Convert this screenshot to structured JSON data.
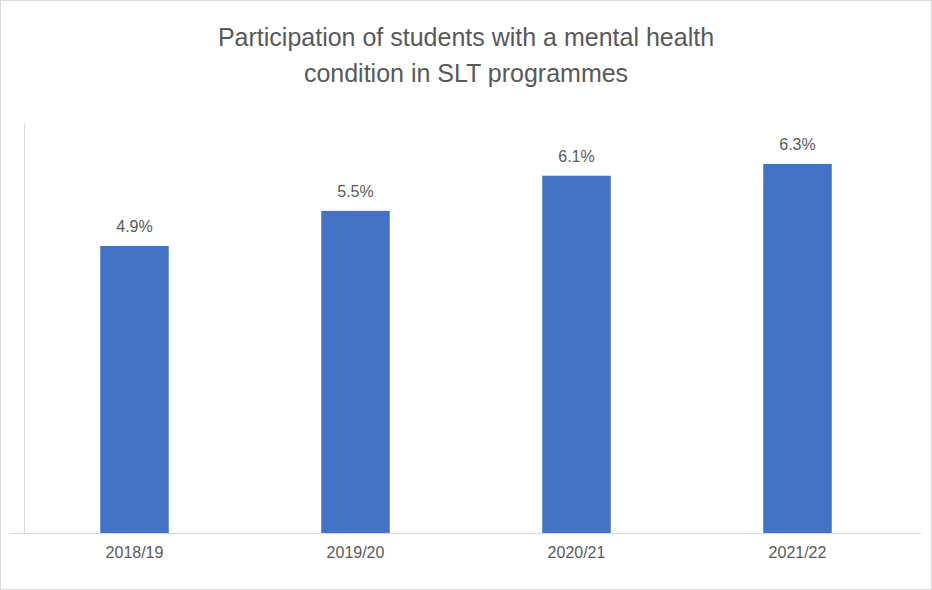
{
  "chart_data": {
    "type": "bar",
    "title": "Participation of students with a mental health condition in SLT programmes",
    "categories": [
      "2018/19",
      "2019/20",
      "2020/21",
      "2021/22"
    ],
    "values": [
      4.9,
      5.5,
      6.1,
      6.3
    ],
    "value_labels": [
      "4.9%",
      "5.5%",
      "6.1%",
      "6.3%"
    ],
    "color": "#4472c4",
    "ylim": [
      0,
      7
    ],
    "grid": false,
    "data_labels": true,
    "tick_labels": "x"
  }
}
